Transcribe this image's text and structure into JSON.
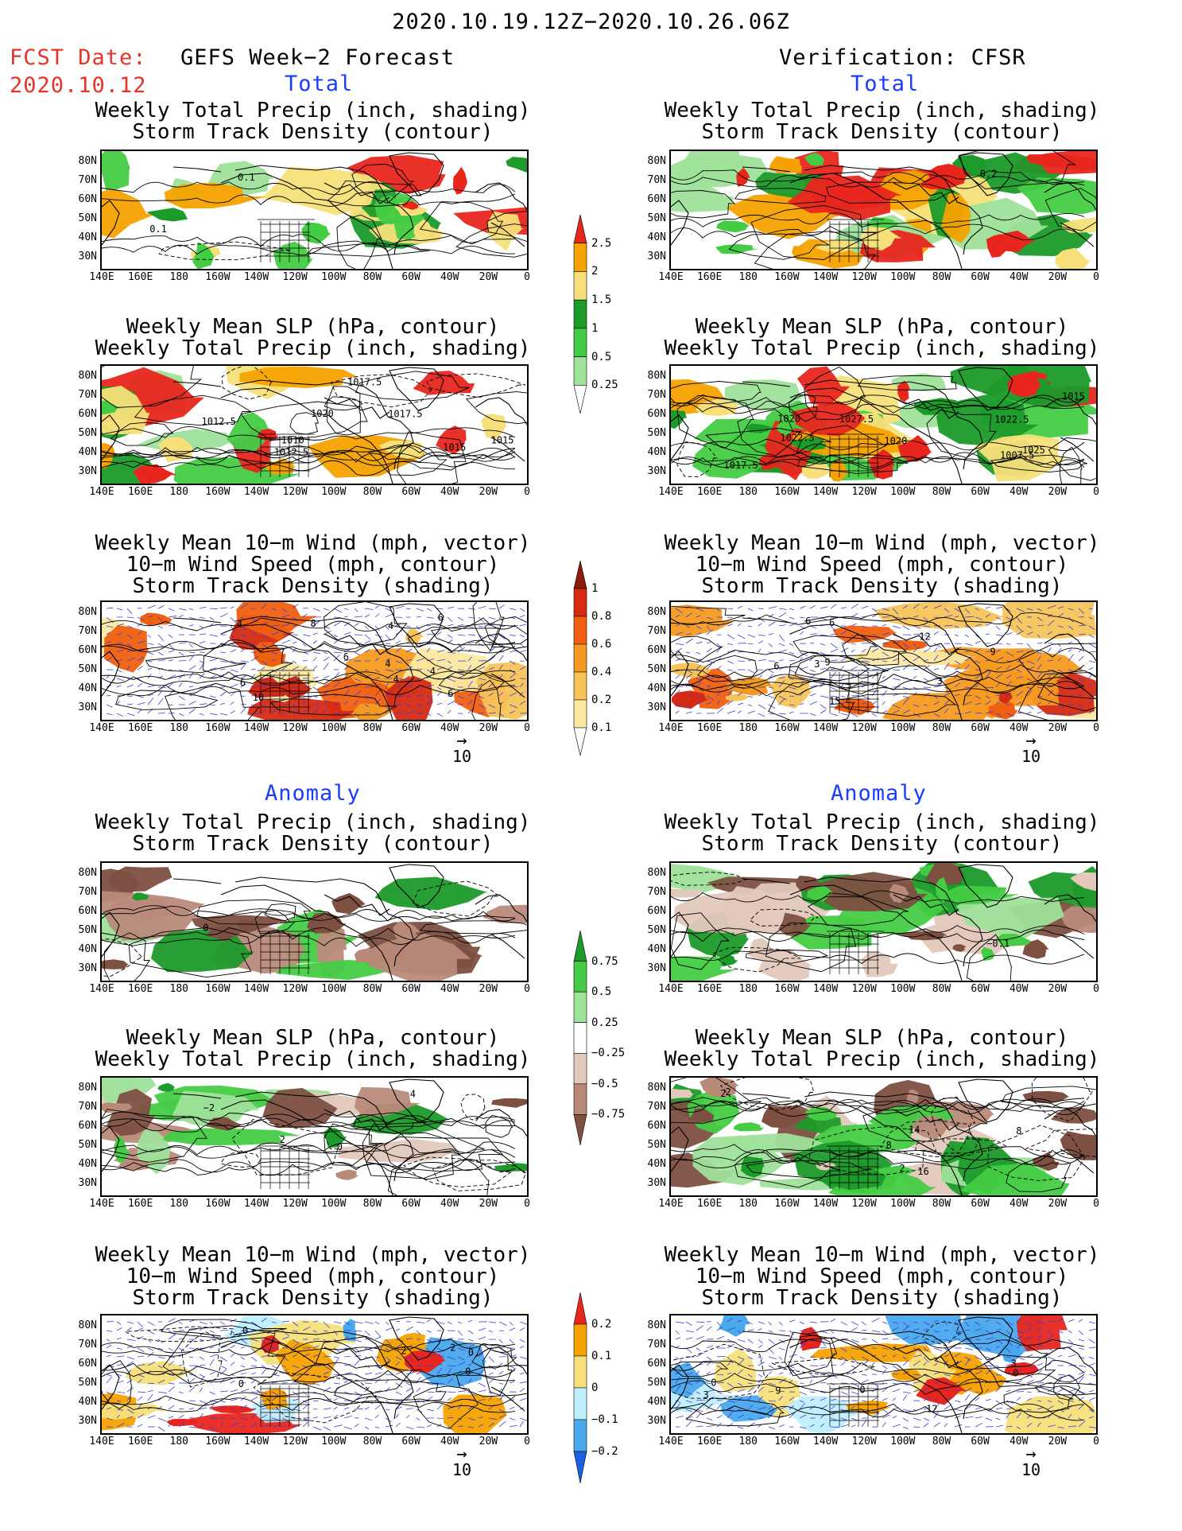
{
  "header": {
    "period": "2020.10.19.12Z−2020.10.26.06Z",
    "fcst_date_label": "FCST Date:",
    "fcst_date_value": "2020.10.12",
    "left_column_title": "GEFS Week−2 Forecast",
    "right_column_title": "Verification: CFSR",
    "section_total": "Total",
    "section_anomaly": "Anomaly"
  },
  "panel_titles": {
    "precip_storm": [
      "Weekly Total Precip (inch, shading)",
      "Storm Track Density (contour)"
    ],
    "slp_precip": [
      "Weekly Mean SLP (hPa, contour)",
      "Weekly Total Precip (inch, shading)"
    ],
    "wind_storm": [
      "Weekly Mean 10−m Wind (mph, vector)",
      "10−m Wind Speed (mph, contour)",
      "Storm Track Density (shading)"
    ]
  },
  "axes": {
    "lat_labels": [
      "80N",
      "70N",
      "60N",
      "50N",
      "40N",
      "30N"
    ],
    "lon_labels": [
      "140E",
      "160E",
      "180",
      "160W",
      "140W",
      "120W",
      "100W",
      "80W",
      "60W",
      "40W",
      "20W",
      "0"
    ]
  },
  "vector_reference": {
    "arrow": "→",
    "value": "10"
  },
  "colorbars": {
    "precip_total": {
      "ticks": [
        "2.5",
        "2",
        "1.5",
        "1",
        "0.5",
        "0.25"
      ],
      "colors": [
        "#e8261e",
        "#f5a200",
        "#f7e07a",
        "#1c9a2a",
        "#44cc44",
        "#9fe29a",
        "#ffffff"
      ]
    },
    "storm_total": {
      "ticks": [
        "1",
        "0.8",
        "0.6",
        "0.4",
        "0.2",
        "0.1"
      ],
      "colors": [
        "#8b1a10",
        "#d62a12",
        "#f06010",
        "#f59a20",
        "#f7c45a",
        "#fbe9a0",
        "#ffffff"
      ]
    },
    "precip_anomaly": {
      "ticks": [
        "0.75",
        "0.5",
        "0.25",
        "−0.25",
        "−0.5",
        "−0.75"
      ],
      "colors": [
        "#1c9a2a",
        "#44cc44",
        "#9fe29a",
        "#ffffff",
        "#e3c8bc",
        "#b98a7a",
        "#7d5042"
      ]
    },
    "storm_anomaly": {
      "ticks": [
        "0.2",
        "0.1",
        "0",
        "−0.1",
        "−0.2"
      ],
      "colors": [
        "#e8261e",
        "#f5a200",
        "#f7e07a",
        "#bfefff",
        "#4aa8ec",
        "#1c5fe0"
      ]
    }
  },
  "contour_labels": {
    "left_total_precip": [
      "0.1",
      "0.1"
    ],
    "right_total_precip": [
      "0.2"
    ],
    "left_total_slp": [
      "1017.5",
      "1017.5",
      "1015",
      "1012.5",
      "1015",
      "1010",
      "1012.5",
      "1020"
    ],
    "right_total_slp": [
      "1015",
      "1017.5",
      "1022.5",
      "1007.5",
      "1020",
      "1027.5",
      "1025",
      "1020",
      "1022.5"
    ],
    "left_total_wind": [
      "6",
      "6",
      "4",
      "4",
      "4",
      "10",
      "6",
      "6",
      "4",
      "4",
      "8"
    ],
    "right_total_wind": [
      "9",
      "6",
      "3",
      "3",
      "6",
      "12",
      "9",
      "15",
      "6"
    ],
    "left_anom_precip": [
      "0"
    ],
    "right_anom_precip": [
      "−0.1"
    ],
    "left_anom_slp": [
      "2",
      "0",
      "4",
      "−2"
    ],
    "right_anom_slp": [
      "2",
      "2",
      "16",
      "14",
      "8",
      "2",
      "8"
    ],
    "left_anom_wind": [
      "0",
      "2",
      "0",
      "2",
      "0",
      "0"
    ],
    "right_anom_wind": [
      "0",
      "3",
      "0",
      "9",
      "3",
      "12",
      "0"
    ]
  }
}
